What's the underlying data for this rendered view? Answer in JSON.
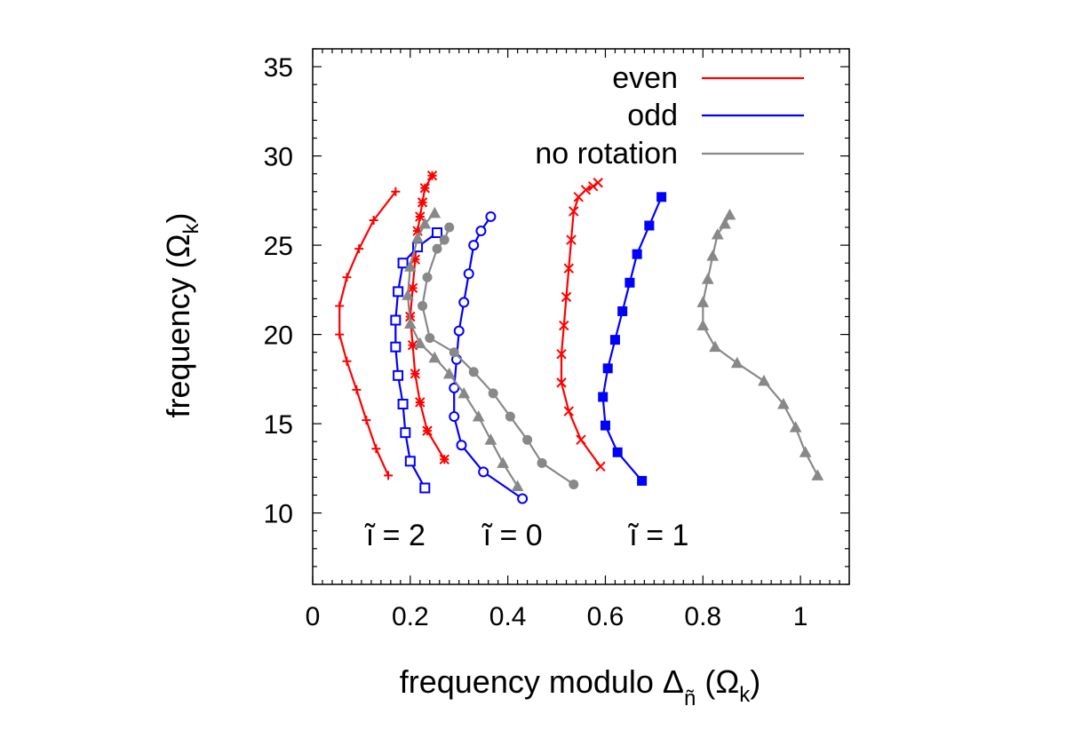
{
  "chart_data": {
    "type": "line",
    "title": "",
    "xlabel": {
      "text": "frequency modulo Δ",
      "subscript": "ñ",
      "unit": " (Ω",
      "unit_sub": "k",
      "close": ")"
    },
    "ylabel": {
      "text": "frequency (Ω",
      "sub": "k",
      "close": ")"
    },
    "xlim": [
      0,
      1.1
    ],
    "ylim": [
      6,
      36
    ],
    "xticks": [
      0,
      0.2,
      0.4,
      0.6,
      0.8,
      1
    ],
    "xtick_labels": [
      "0",
      "0.2",
      "0.4",
      "0.6",
      "0.8",
      "1"
    ],
    "yticks": [
      10,
      15,
      20,
      25,
      30,
      35
    ],
    "ytick_labels": [
      "10",
      "15",
      "20",
      "25",
      "30",
      "35"
    ],
    "colors": {
      "even": "#ff0000",
      "odd": "#0000ff",
      "no_rotation": "#888888"
    },
    "legend": {
      "placement": "top-right",
      "entries": [
        {
          "label": "even",
          "color": "#ff0000"
        },
        {
          "label": "odd",
          "color": "#0000ff"
        },
        {
          "label": "no rotation",
          "color": "#888888"
        }
      ]
    },
    "annotations": [
      "ĩ = 2",
      "ĩ = 0",
      "ĩ = 1"
    ],
    "annotation_positions": [
      {
        "text": "ĩ = 2",
        "x": 0.17,
        "y": 8.2
      },
      {
        "text": "ĩ = 0",
        "x": 0.41,
        "y": 8.2
      },
      {
        "text": "ĩ = 1",
        "x": 0.71,
        "y": 8.2
      }
    ],
    "series": [
      {
        "name": "even l=2 (plus)",
        "group": "even",
        "marker": "plus",
        "x": [
          0.155,
          0.13,
          0.11,
          0.09,
          0.07,
          0.055,
          0.055,
          0.07,
          0.095,
          0.125,
          0.17
        ],
        "y": [
          12.1,
          13.6,
          15.2,
          16.9,
          18.5,
          20.0,
          21.6,
          23.2,
          24.8,
          26.4,
          28.0
        ]
      },
      {
        "name": "even l=0 (star)",
        "group": "even",
        "marker": "star",
        "x": [
          0.27,
          0.235,
          0.22,
          0.21,
          0.205,
          0.2,
          0.205,
          0.21,
          0.215,
          0.22,
          0.225,
          0.23,
          0.245
        ],
        "y": [
          13.0,
          14.6,
          16.2,
          17.8,
          19.4,
          21.0,
          22.6,
          24.2,
          25.8,
          26.6,
          27.4,
          28.2,
          28.9
        ]
      },
      {
        "name": "even l=1 (x)",
        "group": "even",
        "marker": "cross",
        "x": [
          0.59,
          0.55,
          0.525,
          0.51,
          0.51,
          0.515,
          0.52,
          0.525,
          0.53,
          0.535,
          0.545,
          0.56,
          0.575,
          0.585
        ],
        "y": [
          12.6,
          14.1,
          15.7,
          17.3,
          18.9,
          20.5,
          22.1,
          23.7,
          25.3,
          26.9,
          27.7,
          28.1,
          28.3,
          28.5
        ]
      },
      {
        "name": "odd l=2 (open square)",
        "group": "odd",
        "marker": "square-open",
        "x": [
          0.23,
          0.2,
          0.19,
          0.185,
          0.175,
          0.17,
          0.17,
          0.175,
          0.185,
          0.215,
          0.255
        ],
        "y": [
          11.4,
          12.9,
          14.5,
          16.1,
          17.7,
          19.3,
          20.8,
          22.4,
          24.0,
          24.9,
          25.7
        ]
      },
      {
        "name": "odd l=0 (open circle)",
        "group": "odd",
        "marker": "circle-open",
        "x": [
          0.43,
          0.35,
          0.305,
          0.29,
          0.29,
          0.295,
          0.3,
          0.31,
          0.32,
          0.33,
          0.345,
          0.365
        ],
        "y": [
          10.8,
          12.3,
          13.8,
          15.4,
          17.0,
          18.6,
          20.2,
          21.8,
          23.4,
          25.0,
          25.8,
          26.6
        ]
      },
      {
        "name": "odd l=1 (filled square)",
        "group": "odd",
        "marker": "square-filled",
        "x": [
          0.675,
          0.625,
          0.6,
          0.595,
          0.605,
          0.62,
          0.635,
          0.65,
          0.665,
          0.69,
          0.715
        ],
        "y": [
          11.8,
          13.4,
          14.9,
          16.5,
          18.1,
          19.7,
          21.3,
          22.9,
          24.5,
          26.1,
          27.7
        ]
      },
      {
        "name": "no rotation l=2 (filled triangle)",
        "group": "no_rotation",
        "marker": "triangle",
        "x": [
          0.42,
          0.39,
          0.365,
          0.34,
          0.31,
          0.28,
          0.25,
          0.22,
          0.2,
          0.195,
          0.2,
          0.215,
          0.23,
          0.25
        ],
        "y": [
          11.5,
          12.8,
          14.1,
          15.4,
          16.7,
          17.8,
          18.7,
          19.5,
          20.6,
          22.2,
          23.8,
          25.4,
          26.2,
          26.8
        ]
      },
      {
        "name": "no rotation l=0 (filled circle)",
        "group": "no_rotation",
        "marker": "circle-filled",
        "x": [
          0.535,
          0.47,
          0.44,
          0.405,
          0.37,
          0.33,
          0.29,
          0.24,
          0.225,
          0.235,
          0.255,
          0.27,
          0.28
        ],
        "y": [
          11.6,
          12.8,
          14.1,
          15.4,
          16.7,
          17.9,
          19.0,
          19.8,
          21.6,
          23.2,
          24.8,
          25.3,
          26.0
        ]
      },
      {
        "name": "no rotation l=1 (filled triangle)",
        "group": "no_rotation",
        "marker": "triangle",
        "x": [
          1.035,
          1.01,
          0.99,
          0.965,
          0.925,
          0.87,
          0.825,
          0.8,
          0.8,
          0.81,
          0.82,
          0.83,
          0.845,
          0.855
        ],
        "y": [
          12.1,
          13.4,
          14.8,
          16.1,
          17.4,
          18.4,
          19.3,
          20.5,
          21.8,
          23.1,
          24.4,
          25.6,
          26.2,
          26.7
        ]
      }
    ]
  }
}
